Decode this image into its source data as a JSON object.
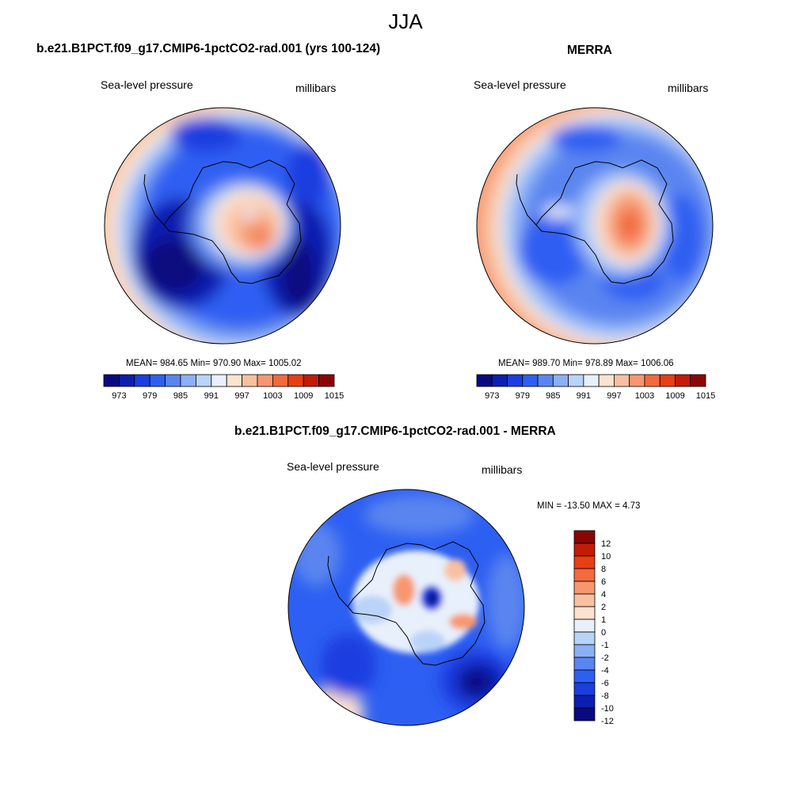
{
  "page": {
    "title": "JJA"
  },
  "panels": [
    {
      "title": "b.e21.B1PCT.f09_g17.CMIP6-1pctCO2-rad.001 (yrs 100-124)",
      "left_label": "Sea-level pressure",
      "right_label": "millibars",
      "stats": "MEAN= 984.65  Min= 970.90  Max= 1005.02"
    },
    {
      "title": "MERRA",
      "left_label": "Sea-level pressure",
      "right_label": "millibars",
      "stats": "MEAN= 989.70  Min= 978.89  Max= 1006.06"
    },
    {
      "title": "b.e21.B1PCT.f09_g17.CMIP6-1pctCO2-rad.001 - MERRA",
      "left_label": "Sea-level pressure",
      "right_label": "millibars",
      "stats": "MIN = -13.50 MAX =   4.73"
    }
  ],
  "colorbars": {
    "abs_colors": [
      "#0a0a80",
      "#0c1eb0",
      "#1a3ee0",
      "#2d5ff2",
      "#5a85f0",
      "#8cb0f5",
      "#bad3f8",
      "#e8f0fb",
      "#fde2cf",
      "#f9c0a0",
      "#f79770",
      "#f26a3e",
      "#e83e14",
      "#c21b08",
      "#8a0606"
    ],
    "abs_ticks": [
      "973",
      "979",
      "985",
      "991",
      "997",
      "1003",
      "1009",
      "1015"
    ],
    "diff_colors": [
      "#0a0a80",
      "#0c1eb0",
      "#1a3ee0",
      "#2d5ff2",
      "#5a85f0",
      "#8cb0f5",
      "#bad3f8",
      "#e8f0fb",
      "#fde2cf",
      "#f9c0a0",
      "#f79770",
      "#f26a3e",
      "#e83e14",
      "#c21b08",
      "#8a0606"
    ],
    "diff_ticks": [
      "12",
      "10",
      "8",
      "6",
      "4",
      "2",
      "1",
      "0",
      "-1",
      "-2",
      "-4",
      "-6",
      "-8",
      "-10",
      "-12"
    ]
  }
}
